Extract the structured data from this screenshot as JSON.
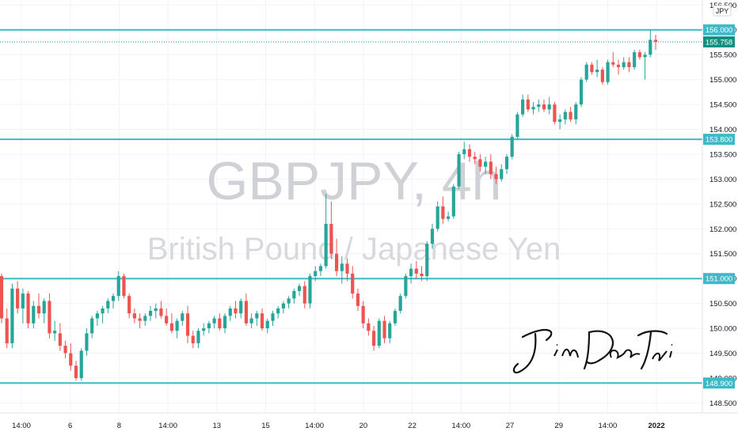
{
  "watermark": {
    "symbol_line": "GBPJPY, 4h",
    "name_line": "British Pound / Japanese Yen"
  },
  "signature": "JinDaoTai",
  "currency_badge": "JPY",
  "colors": {
    "up": "#26a69a",
    "down": "#ef5350",
    "level": "#3fb8c8",
    "last_price": "#138f80",
    "grid": "#f0f3fa",
    "axis_text": "#131722"
  },
  "chart_data": {
    "type": "candlestick",
    "symbol": "GBPJPY",
    "timeframe": "4h",
    "y_axis": {
      "min": 148.3,
      "max": 156.6,
      "ticks": [
        "148.500",
        "149.000",
        "149.500",
        "150.000",
        "150.500",
        "151.000",
        "151.500",
        "152.000",
        "152.500",
        "153.000",
        "153.500",
        "154.000",
        "154.500",
        "155.000",
        "155.500",
        "156.000",
        "156.500"
      ]
    },
    "x_axis": {
      "labels": [
        "14:00",
        "6",
        "8",
        "14:00",
        "13",
        "15",
        "14:00",
        "20",
        "22",
        "14:00",
        "27",
        "29",
        "14:00",
        "2022"
      ]
    },
    "horizontal_levels": [
      {
        "value": 156.0,
        "label": "156.000"
      },
      {
        "value": 153.8,
        "label": "153.800"
      },
      {
        "value": 151.0,
        "label": "151.000"
      },
      {
        "value": 148.9,
        "label": "148.900"
      }
    ],
    "last_price": {
      "value": 155.758,
      "label": "155.758"
    },
    "candles": [
      [
        151.05,
        151.1,
        150.1,
        150.2
      ],
      [
        150.2,
        150.4,
        149.6,
        149.7
      ],
      [
        149.7,
        150.9,
        149.6,
        150.8
      ],
      [
        150.8,
        150.95,
        150.3,
        150.4
      ],
      [
        150.4,
        150.8,
        150.1,
        150.7
      ],
      [
        150.7,
        150.75,
        150.0,
        150.1
      ],
      [
        150.1,
        150.55,
        150.0,
        150.45
      ],
      [
        150.45,
        150.7,
        150.2,
        150.3
      ],
      [
        150.3,
        150.6,
        150.1,
        150.55
      ],
      [
        150.55,
        150.7,
        149.8,
        149.9
      ],
      [
        149.9,
        150.15,
        149.75,
        149.95
      ],
      [
        149.9,
        150.1,
        149.55,
        149.65
      ],
      [
        149.65,
        149.75,
        149.4,
        149.5
      ],
      [
        149.5,
        149.7,
        149.15,
        149.25
      ],
      [
        149.25,
        149.35,
        148.95,
        149.0
      ],
      [
        149.0,
        149.6,
        148.95,
        149.55
      ],
      [
        149.55,
        150.0,
        149.45,
        149.9
      ],
      [
        149.9,
        150.25,
        149.8,
        150.2
      ],
      [
        150.2,
        150.35,
        150.05,
        150.3
      ],
      [
        150.3,
        150.45,
        150.1,
        150.4
      ],
      [
        150.4,
        150.6,
        150.3,
        150.55
      ],
      [
        150.55,
        150.7,
        150.4,
        150.65
      ],
      [
        150.65,
        151.15,
        150.55,
        151.05
      ],
      [
        151.05,
        151.1,
        150.6,
        150.65
      ],
      [
        150.65,
        150.7,
        150.2,
        150.3
      ],
      [
        150.3,
        150.4,
        150.1,
        150.2
      ],
      [
        150.2,
        150.3,
        150.0,
        150.15
      ],
      [
        150.15,
        150.3,
        150.05,
        150.25
      ],
      [
        150.25,
        150.45,
        150.15,
        150.35
      ],
      [
        150.35,
        150.5,
        150.2,
        150.4
      ],
      [
        150.4,
        150.55,
        150.2,
        150.25
      ],
      [
        150.25,
        150.4,
        150.05,
        150.1
      ],
      [
        150.1,
        150.3,
        149.9,
        149.95
      ],
      [
        149.95,
        150.2,
        149.8,
        150.15
      ],
      [
        150.15,
        150.35,
        150.05,
        150.3
      ],
      [
        150.3,
        150.45,
        149.7,
        149.85
      ],
      [
        149.85,
        149.95,
        149.6,
        149.7
      ],
      [
        149.7,
        150.0,
        149.6,
        149.95
      ],
      [
        149.95,
        150.1,
        149.85,
        150.0
      ],
      [
        150.0,
        150.15,
        149.9,
        150.1
      ],
      [
        150.1,
        150.25,
        150.0,
        150.2
      ],
      [
        150.2,
        150.3,
        149.95,
        150.0
      ],
      [
        150.0,
        150.3,
        149.9,
        150.25
      ],
      [
        150.25,
        150.45,
        150.15,
        150.4
      ],
      [
        150.4,
        150.55,
        150.2,
        150.3
      ],
      [
        150.3,
        150.6,
        150.2,
        150.55
      ],
      [
        150.55,
        150.7,
        150.05,
        150.1
      ],
      [
        150.1,
        150.3,
        150.0,
        150.2
      ],
      [
        150.2,
        150.35,
        150.05,
        150.3
      ],
      [
        150.3,
        150.4,
        149.95,
        150.0
      ],
      [
        150.0,
        150.2,
        149.9,
        150.15
      ],
      [
        150.15,
        150.35,
        150.05,
        150.3
      ],
      [
        150.3,
        150.45,
        150.2,
        150.4
      ],
      [
        150.4,
        150.55,
        150.3,
        150.5
      ],
      [
        150.5,
        150.65,
        150.4,
        150.6
      ],
      [
        150.6,
        150.8,
        150.5,
        150.75
      ],
      [
        150.75,
        150.9,
        150.65,
        150.85
      ],
      [
        150.85,
        150.95,
        150.4,
        150.5
      ],
      [
        150.5,
        151.1,
        150.4,
        151.05
      ],
      [
        151.05,
        151.25,
        150.95,
        151.15
      ],
      [
        151.15,
        151.3,
        151.05,
        151.25
      ],
      [
        151.25,
        152.7,
        151.2,
        152.1
      ],
      [
        152.1,
        152.55,
        151.4,
        151.5
      ],
      [
        151.5,
        151.8,
        151.05,
        151.15
      ],
      [
        151.15,
        151.45,
        150.9,
        151.3
      ],
      [
        151.3,
        151.4,
        150.95,
        151.1
      ],
      [
        151.1,
        151.25,
        150.6,
        150.7
      ],
      [
        150.7,
        150.8,
        150.35,
        150.45
      ],
      [
        150.45,
        150.55,
        150.0,
        150.1
      ],
      [
        150.1,
        150.2,
        149.85,
        149.95
      ],
      [
        149.95,
        150.05,
        149.55,
        149.65
      ],
      [
        149.65,
        150.2,
        149.6,
        150.15
      ],
      [
        150.15,
        150.25,
        149.7,
        149.8
      ],
      [
        149.8,
        150.15,
        149.7,
        150.1
      ],
      [
        150.1,
        150.4,
        150.05,
        150.35
      ],
      [
        150.35,
        150.7,
        150.3,
        150.65
      ],
      [
        150.65,
        151.1,
        150.6,
        151.05
      ],
      [
        151.05,
        151.3,
        150.9,
        151.2
      ],
      [
        151.2,
        151.35,
        151.0,
        151.1
      ],
      [
        151.1,
        151.25,
        150.95,
        151.05
      ],
      [
        151.05,
        151.75,
        150.95,
        151.7
      ],
      [
        151.7,
        152.1,
        151.6,
        152.0
      ],
      [
        152.0,
        152.55,
        151.95,
        152.45
      ],
      [
        152.45,
        152.65,
        152.1,
        152.2
      ],
      [
        152.2,
        152.35,
        152.15,
        152.25
      ],
      [
        152.25,
        152.9,
        152.2,
        152.85
      ],
      [
        152.85,
        153.55,
        152.8,
        153.5
      ],
      [
        153.5,
        153.75,
        153.4,
        153.6
      ],
      [
        153.6,
        153.7,
        153.35,
        153.45
      ],
      [
        153.45,
        153.55,
        153.3,
        153.4
      ],
      [
        153.4,
        153.5,
        153.15,
        153.25
      ],
      [
        153.25,
        153.45,
        153.1,
        153.35
      ],
      [
        153.35,
        153.5,
        153.0,
        153.1
      ],
      [
        153.1,
        153.25,
        152.9,
        153.0
      ],
      [
        153.0,
        153.3,
        152.95,
        153.2
      ],
      [
        153.2,
        153.5,
        153.1,
        153.45
      ],
      [
        153.45,
        153.9,
        153.4,
        153.85
      ],
      [
        153.85,
        154.35,
        153.8,
        154.3
      ],
      [
        154.3,
        154.7,
        154.25,
        154.6
      ],
      [
        154.6,
        154.7,
        154.35,
        154.4
      ],
      [
        154.4,
        154.55,
        154.3,
        154.45
      ],
      [
        154.45,
        154.6,
        154.35,
        154.5
      ],
      [
        154.5,
        154.6,
        154.35,
        154.4
      ],
      [
        154.4,
        154.65,
        154.3,
        154.5
      ],
      [
        154.5,
        154.55,
        154.1,
        154.15
      ],
      [
        154.15,
        154.3,
        154.0,
        154.2
      ],
      [
        154.2,
        154.4,
        154.1,
        154.35
      ],
      [
        154.35,
        154.45,
        154.15,
        154.2
      ],
      [
        154.2,
        154.55,
        154.1,
        154.5
      ],
      [
        154.5,
        155.05,
        154.45,
        155.0
      ],
      [
        155.0,
        155.35,
        154.95,
        155.3
      ],
      [
        155.3,
        155.35,
        155.1,
        155.15
      ],
      [
        155.15,
        155.4,
        155.05,
        155.2
      ],
      [
        155.2,
        155.25,
        154.9,
        154.95
      ],
      [
        154.95,
        155.4,
        154.9,
        155.35
      ],
      [
        155.35,
        155.55,
        155.25,
        155.3
      ],
      [
        155.3,
        155.4,
        155.1,
        155.25
      ],
      [
        155.25,
        155.45,
        155.2,
        155.35
      ],
      [
        155.35,
        155.45,
        155.15,
        155.25
      ],
      [
        155.25,
        155.6,
        155.2,
        155.55
      ],
      [
        155.55,
        155.6,
        155.4,
        155.45
      ],
      [
        155.45,
        155.55,
        155.0,
        155.5
      ],
      [
        155.5,
        156.0,
        155.45,
        155.8
      ],
      [
        155.8,
        155.9,
        155.6,
        155.76
      ]
    ]
  }
}
